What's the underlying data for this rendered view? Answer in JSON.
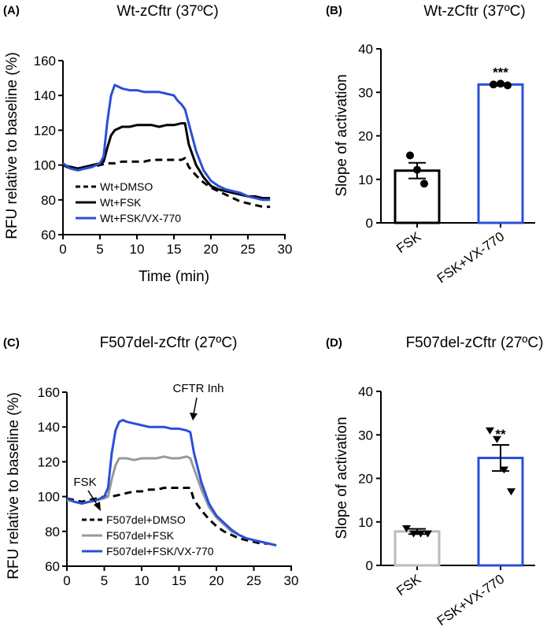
{
  "colors": {
    "dmso": "#000000",
    "fsk": "#000000",
    "fsk_fsk_c": "#999999",
    "vx770": "#2b4fd8",
    "bar_fsk_b": "#000000",
    "bar_fsk_d": "#bbbbbb"
  },
  "chart_data": [
    {
      "panel": "(A)",
      "type": "line",
      "title": "Wt-zCftr  (37ºC)",
      "xlabel": "Time (min)",
      "ylabel": "RFU  relative to baseline (%)",
      "xlim": [
        0,
        30
      ],
      "ylim": [
        60,
        160
      ],
      "xticks": [
        "0",
        "5",
        "10",
        "15",
        "20",
        "25",
        "30"
      ],
      "yticks": [
        "60",
        "80",
        "100",
        "120",
        "140",
        "160"
      ],
      "grid": false,
      "legend_position": "bottom-left",
      "series": [
        {
          "name": "Wt+DMSO",
          "style": "dashed",
          "color": "#000000",
          "x": [
            0,
            1,
            2,
            3,
            4,
            5,
            6,
            7,
            8,
            9,
            10,
            11,
            12,
            13,
            14,
            15,
            16,
            16.5,
            17,
            18,
            19,
            20,
            21,
            22,
            23,
            24,
            25,
            26,
            27,
            28
          ],
          "y": [
            100,
            98,
            97,
            98,
            99,
            100,
            101,
            101,
            102,
            102,
            102,
            102,
            103,
            103,
            103,
            103,
            103,
            104,
            99,
            94,
            90,
            87,
            85,
            83,
            81,
            79,
            78,
            77,
            76,
            76
          ]
        },
        {
          "name": "Wt+FSK",
          "style": "solid",
          "color": "#000000",
          "x": [
            0,
            1,
            2,
            3,
            4,
            5,
            5.5,
            6,
            6.5,
            7,
            8,
            9,
            10,
            11,
            12,
            13,
            14,
            15,
            16,
            16.5,
            17,
            18,
            19,
            20,
            21,
            22,
            23,
            24,
            25,
            26,
            27,
            28
          ],
          "y": [
            100,
            99,
            98,
            99,
            100,
            101,
            102,
            110,
            117,
            120,
            122,
            122,
            123,
            123,
            123,
            122,
            123,
            123,
            124,
            124,
            112,
            100,
            93,
            88,
            86,
            85,
            84,
            83,
            82,
            82,
            81,
            81
          ]
        },
        {
          "name": "Wt+FSK/VX-770",
          "style": "solid",
          "color": "#2b4fd8",
          "x": [
            0,
            1,
            2,
            3,
            4,
            5,
            5.5,
            6,
            6.5,
            7,
            8,
            9,
            10,
            11,
            12,
            13,
            14,
            15,
            15.5,
            16,
            16.5,
            17,
            18,
            19,
            20,
            21,
            22,
            23,
            24,
            25,
            26,
            27,
            28
          ],
          "y": [
            101,
            98,
            97,
            98,
            99,
            101,
            105,
            125,
            140,
            146,
            144,
            143,
            143,
            142,
            142,
            142,
            141,
            140,
            137,
            135,
            132,
            124,
            108,
            97,
            91,
            88,
            86,
            85,
            84,
            82,
            81,
            80,
            80
          ]
        }
      ]
    },
    {
      "panel": "(B)",
      "type": "bar",
      "title": "Wt-zCftr  (37ºC)",
      "xlabel": "",
      "ylabel": "Slope of  activation",
      "ylim": [
        0,
        40
      ],
      "yticks": [
        "0",
        "10",
        "20",
        "30",
        "40"
      ],
      "categories": [
        "FSK",
        "FSK+VX-770"
      ],
      "values": [
        12,
        31.8
      ],
      "errors": [
        1.8,
        0.3
      ],
      "points": [
        [
          15.5,
          12.2,
          9.0
        ],
        [
          31.8,
          32.0,
          31.6
        ]
      ],
      "bar_colors": [
        "#000000",
        "#2b4fd8"
      ],
      "marker": "circle",
      "significance": [
        "",
        "***"
      ]
    },
    {
      "panel": "(C)",
      "type": "line",
      "title": "F507del-zCftr (27ºC)",
      "xlabel": "",
      "ylabel": "RFU  relative to baseline (%)",
      "xlim": [
        0,
        30
      ],
      "ylim": [
        60,
        160
      ],
      "xticks": [
        "0",
        "5",
        "10",
        "15",
        "20",
        "25",
        "30"
      ],
      "yticks": [
        "60",
        "80",
        "100",
        "120",
        "140",
        "160"
      ],
      "grid": false,
      "legend_position": "bottom-left",
      "annotations": [
        {
          "text": "FSK",
          "x": 5
        },
        {
          "text": "CFTR Inh",
          "x": 16.8
        }
      ],
      "series": [
        {
          "name": "F507del+DMSO",
          "style": "dashed",
          "color": "#000000",
          "x": [
            0,
            1,
            2,
            3,
            4,
            5,
            6,
            7,
            8,
            9,
            10,
            11,
            12,
            13,
            14,
            15,
            16,
            16.5,
            17,
            18,
            19,
            20,
            21,
            22,
            23,
            24,
            25,
            26,
            27,
            28
          ],
          "y": [
            99,
            98,
            97,
            98,
            99,
            100,
            100,
            101,
            102,
            103,
            103,
            104,
            104,
            105,
            105,
            105,
            105,
            105,
            98,
            92,
            87,
            83,
            80,
            78,
            76,
            75,
            74,
            73,
            73,
            72
          ]
        },
        {
          "name": "F507del+FSK",
          "style": "solid",
          "color": "#999999",
          "x": [
            0,
            1,
            2,
            3,
            4,
            5,
            5.5,
            6,
            6.5,
            7,
            8,
            9,
            10,
            11,
            12,
            13,
            14,
            15,
            16,
            16.5,
            17,
            18,
            19,
            20,
            21,
            22,
            23,
            24,
            25,
            26,
            27,
            28
          ],
          "y": [
            98,
            97,
            96,
            97,
            98,
            99,
            100,
            110,
            118,
            122,
            122,
            121,
            122,
            122,
            122,
            123,
            122,
            122,
            123,
            122,
            116,
            104,
            94,
            88,
            84,
            80,
            78,
            76,
            75,
            74,
            73,
            72
          ]
        },
        {
          "name": "F507del+FSK/VX-770",
          "style": "solid",
          "color": "#2b4fd8",
          "x": [
            0,
            1,
            2,
            3,
            4,
            5,
            5.5,
            6,
            6.5,
            7,
            7.5,
            8,
            9,
            10,
            11,
            12,
            13,
            14,
            15,
            16,
            16.5,
            17,
            18,
            19,
            20,
            21,
            22,
            23,
            24,
            25,
            26,
            27,
            28
          ],
          "y": [
            99,
            97,
            96,
            97,
            98,
            100,
            105,
            125,
            138,
            143,
            144,
            143,
            142,
            141,
            140,
            140,
            140,
            139,
            139,
            138,
            137,
            125,
            108,
            96,
            89,
            85,
            81,
            78,
            76,
            75,
            74,
            73,
            72
          ]
        }
      ]
    },
    {
      "panel": "(D)",
      "type": "bar",
      "title": "F507del-zCftr (27ºC)",
      "xlabel": "",
      "ylabel": "Slope of  activation",
      "ylim": [
        0,
        40
      ],
      "yticks": [
        "0",
        "10",
        "20",
        "30",
        "40"
      ],
      "categories": [
        "FSK",
        "FSK+VX-770"
      ],
      "values": [
        7.8,
        24.7
      ],
      "errors": [
        0.6,
        3.0
      ],
      "points": [
        [
          8.5,
          7.3,
          7.3,
          7.3
        ],
        [
          31,
          29,
          22,
          17
        ]
      ],
      "bar_colors": [
        "#bbbbbb",
        "#2b4fd8"
      ],
      "marker": "triangle-down",
      "significance": [
        "",
        "**"
      ]
    }
  ]
}
